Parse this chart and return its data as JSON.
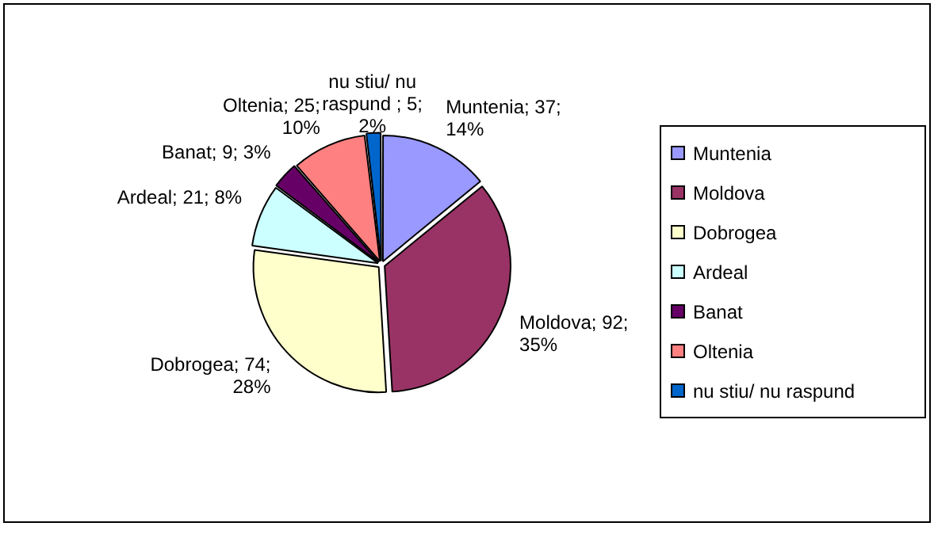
{
  "chart_data": {
    "type": "pie",
    "categories": [
      "Muntenia",
      "Moldova",
      "Dobrogea",
      "Ardeal",
      "Banat",
      "Oltenia",
      "nu stiu/ nu raspund"
    ],
    "values": [
      37,
      92,
      74,
      21,
      9,
      25,
      5
    ],
    "colors": [
      "#9999ff",
      "#993366",
      "#ffffcc",
      "#ccffff",
      "#660066",
      "#ff8080",
      "#0066cc"
    ],
    "value_labels": [
      "Muntenia; 37; 14%",
      "Moldova; 92; 35%",
      "Dobrogea; 74; 28%",
      "Ardeal; 21; 8%",
      "Banat; 9; 3%",
      "Oltenia; 25; 10%",
      "nu stiu/ nu raspund ; 5; 2%"
    ],
    "legend": "right"
  }
}
